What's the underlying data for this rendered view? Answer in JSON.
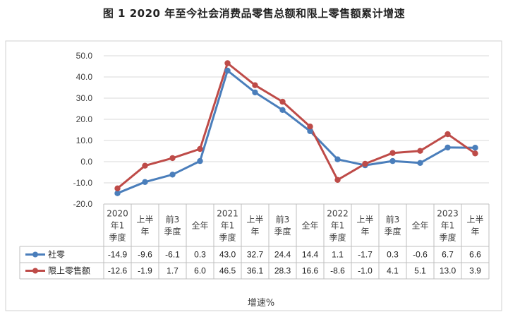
{
  "title": "图 1  2020 年至今社会消费品零售总额和限上零售额累计增速",
  "chart_data": {
    "type": "line",
    "categories": [
      [
        "2020",
        "年1",
        "季度"
      ],
      [
        "上半",
        "年"
      ],
      [
        "前3",
        "季度"
      ],
      [
        "全年"
      ],
      [
        "2021",
        "年1",
        "季度"
      ],
      [
        "上半",
        "年"
      ],
      [
        "前3",
        "季度"
      ],
      [
        "全年"
      ],
      [
        "2022",
        "年1",
        "季度"
      ],
      [
        "上半",
        "年"
      ],
      [
        "前3",
        "季度"
      ],
      [
        "全年"
      ],
      [
        "2023",
        "年1",
        "季度"
      ],
      [
        "上半",
        "年"
      ]
    ],
    "series": [
      {
        "name": "社零",
        "color": "#4a7ebb",
        "values": [
          -14.9,
          -9.6,
          -6.1,
          0.3,
          43.0,
          32.7,
          24.4,
          14.4,
          1.1,
          -1.7,
          0.3,
          -0.6,
          6.7,
          6.6
        ],
        "labels": [
          "-14.9",
          "-9.6",
          "-6.1",
          "0.3",
          "43.0",
          "32.7",
          "24.4",
          "14.4",
          "1.1",
          "-1.7",
          "0.3",
          "-0.6",
          "6.7",
          "6.6"
        ]
      },
      {
        "name": "限上零售额",
        "color": "#be4b48",
        "values": [
          -12.6,
          -1.9,
          1.7,
          6.0,
          46.5,
          36.1,
          28.3,
          16.6,
          -8.6,
          -1.0,
          4.1,
          5.1,
          13.0,
          3.9
        ],
        "labels": [
          "-12.6",
          "-1.9",
          "1.7",
          "6.0",
          "46.5",
          "36.1",
          "28.3",
          "16.6",
          "-8.6",
          "-1.0",
          "4.1",
          "5.1",
          "13.0",
          "3.9"
        ]
      }
    ],
    "ylim": [
      -20,
      50
    ],
    "yticks": [
      "50.0",
      "40.0",
      "30.0",
      "20.0",
      "10.0",
      "0.0",
      "-10.0",
      "-20.0"
    ],
    "ytick_values": [
      50,
      40,
      30,
      20,
      10,
      0,
      -10,
      -20
    ],
    "xlabel": "增速%",
    "grid": true,
    "legend": "data-table-left"
  }
}
